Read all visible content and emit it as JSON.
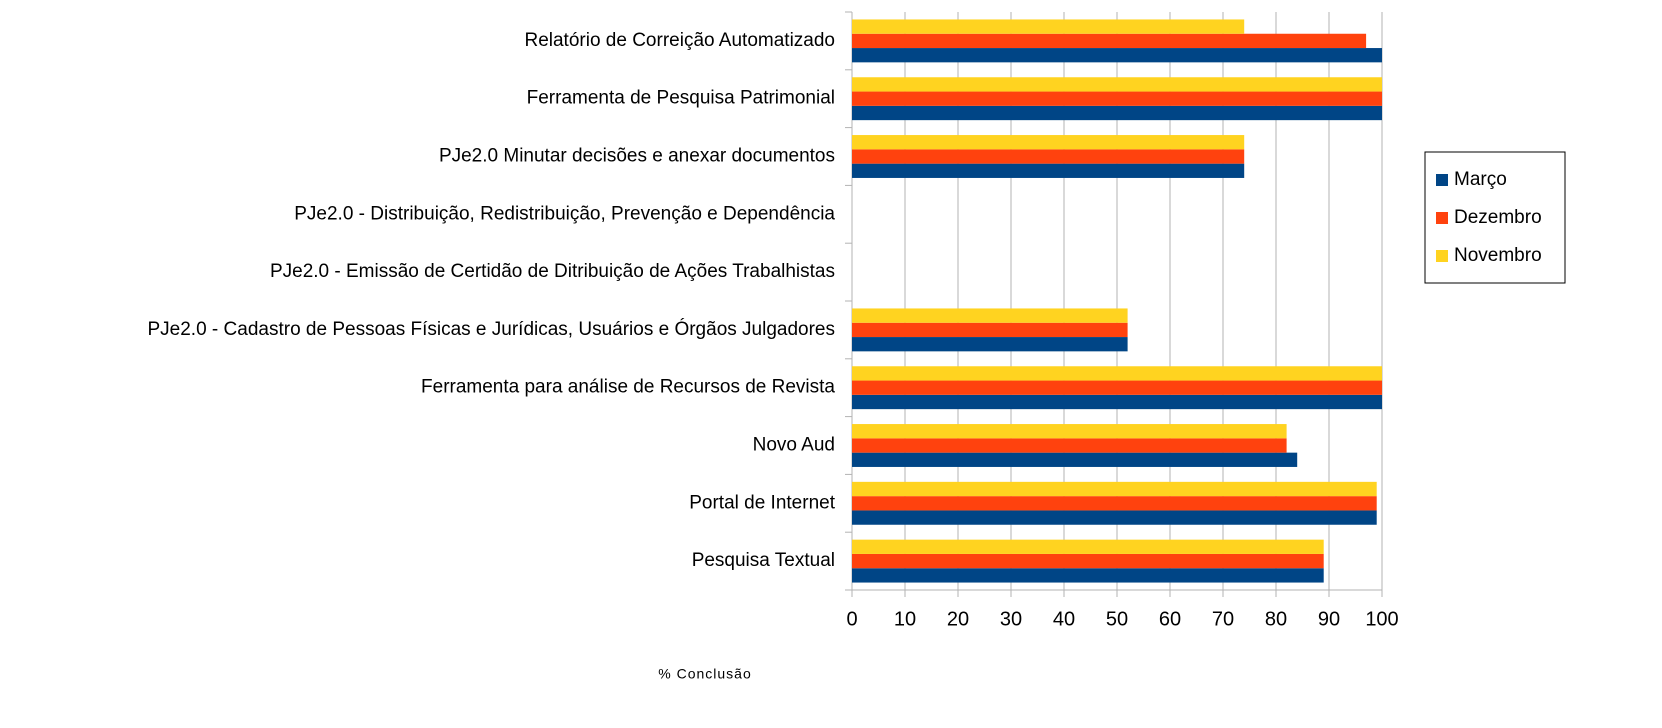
{
  "chart_data": {
    "type": "bar",
    "orientation": "horizontal",
    "x_label": "% Conclusão",
    "categories": [
      "Relatório de Correição Automatizado",
      "Ferramenta de Pesquisa Patrimonial",
      "PJe2.0 Minutar decisões e anexar documentos",
      "PJe2.0 - Distribuição, Redistribuição, Prevenção e Dependência",
      "PJe2.0 - Emissão de Certidão de Ditribuição de Ações Trabalhistas",
      "PJe2.0 - Cadastro de Pessoas Físicas e Jurídicas, Usuários e Órgãos Julgadores",
      "Ferramenta para análise de Recursos de Revista",
      "Novo Aud",
      "Portal de Internet",
      "Pesquisa Textual"
    ],
    "series": [
      {
        "name": "Março",
        "color": "#004586",
        "values": [
          100,
          100,
          74,
          0,
          0,
          52,
          100,
          84,
          99,
          89
        ]
      },
      {
        "name": "Dezembro",
        "color": "#ff420e",
        "values": [
          97,
          100,
          74,
          0,
          0,
          52,
          100,
          82,
          99,
          89
        ]
      },
      {
        "name": "Novembro",
        "color": "#ffd320",
        "values": [
          74,
          100,
          74,
          0,
          0,
          52,
          100,
          82,
          99,
          89
        ]
      }
    ],
    "xlim": [
      0,
      100
    ],
    "xticks": [
      0,
      10,
      20,
      30,
      40,
      50,
      60,
      70,
      80,
      90,
      100
    ],
    "grid": true,
    "legend": "right"
  }
}
